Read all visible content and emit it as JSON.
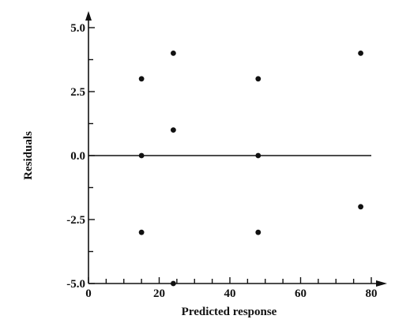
{
  "chart_data": {
    "type": "scatter",
    "xlabel": "Predicted response",
    "ylabel": "Residuals",
    "xlim": [
      0,
      80
    ],
    "ylim": [
      -5.0,
      5.0
    ],
    "x_ticks_labeled": [
      "0",
      "20",
      "40",
      "60",
      "80"
    ],
    "y_ticks_labeled": [
      "5.0",
      "2.5",
      "0.0",
      "-2.5",
      "-5.0"
    ],
    "x_tick_values": [
      0,
      20,
      40,
      60,
      80
    ],
    "y_tick_values": [
      5.0,
      2.5,
      0.0,
      -2.5,
      -5.0
    ],
    "x_minor_step": 5,
    "y_minor_step": 1.25,
    "reference_line_y": 0.0,
    "grid": false,
    "series": [
      {
        "x": [
          15,
          15,
          15,
          24,
          24,
          24,
          48,
          48,
          48,
          77,
          77
        ],
        "y": [
          3,
          0,
          -3,
          4,
          1,
          -5,
          3,
          0,
          -3,
          4,
          -2
        ]
      }
    ]
  }
}
